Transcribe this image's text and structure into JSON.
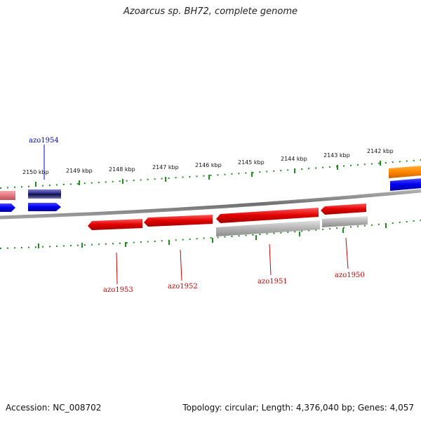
{
  "title": "Azoarcus sp. BH72, complete genome",
  "footer": {
    "accession": "Accession: NC_008702",
    "stats": "Topology: circular; Length: 4,376,040 bp; Genes: 4,057"
  },
  "scale": {
    "unit": "kbp",
    "positions_kbp": [
      2150,
      2149,
      2148,
      2147,
      2146,
      2145,
      2144,
      2143,
      2142
    ]
  },
  "colors": {
    "backbone": "#808080",
    "tick": "#1e8c1e",
    "forward_label": "#0000cc",
    "reverse_label": "#cc0000",
    "gene_red": "#e00000",
    "gene_blue": "#0000ee",
    "gene_orange": "#ff8800",
    "gene_gray": "#b4b4b4",
    "gene_pink": "#e07a80",
    "gene_navy": "#3a3a9a"
  },
  "gene_labels": [
    {
      "id": "azo1954",
      "strand": "forward"
    },
    {
      "id": "azo1953",
      "strand": "reverse"
    },
    {
      "id": "azo1952",
      "strand": "reverse"
    },
    {
      "id": "azo1951",
      "strand": "reverse"
    },
    {
      "id": "azo1950",
      "strand": "reverse"
    }
  ]
}
